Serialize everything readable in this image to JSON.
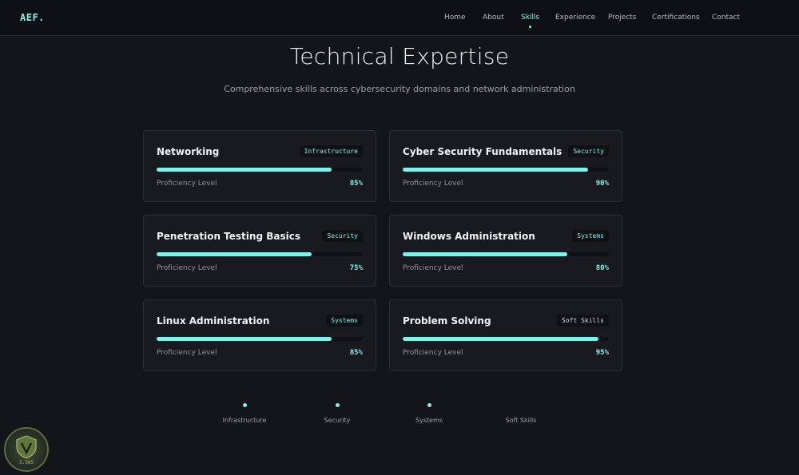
{
  "header": {
    "logo": "AEF.",
    "nav": [
      {
        "label": "Home",
        "active": false
      },
      {
        "label": "About",
        "active": false
      },
      {
        "label": "Skills",
        "active": true
      },
      {
        "label": "Experience",
        "active": false
      },
      {
        "label": "Projects",
        "active": false
      },
      {
        "label": "Certifications",
        "active": false
      },
      {
        "label": "Contact",
        "active": false
      }
    ]
  },
  "section": {
    "title": "Technical Expertise",
    "subtitle": "Comprehensive skills across cybersecurity domains and network administration"
  },
  "skills": [
    {
      "name": "Networking",
      "tag": "Infrastructure",
      "proficiency_label": "Proficiency Level",
      "value_text": "85%",
      "level": 0.85
    },
    {
      "name": "Cyber Security Fundamentals",
      "tag": "Security",
      "proficiency_label": "Proficiency Level",
      "value_text": "90%",
      "level": 0.9
    },
    {
      "name": "Penetration Testing Basics",
      "tag": "Security",
      "proficiency_label": "Proficiency Level",
      "value_text": "75%",
      "level": 0.75
    },
    {
      "name": "Windows Administration",
      "tag": "Systems",
      "proficiency_label": "Proficiency Level",
      "value_text": "80%",
      "level": 0.8
    },
    {
      "name": "Linux Administration",
      "tag": "Systems",
      "proficiency_label": "Proficiency Level",
      "value_text": "85%",
      "level": 0.85
    },
    {
      "name": "Problem Solving",
      "tag": "Soft Skills",
      "proficiency_label": "Proficiency Level",
      "value_text": "95%",
      "level": 0.95
    }
  ],
  "legend": [
    "Infrastructure",
    "Security",
    "Systems",
    "Soft Skills"
  ],
  "badge": {
    "text": "1.565"
  },
  "colors": {
    "accent": "#7ff1ea",
    "background": "#13151a",
    "card": "#181a20"
  }
}
